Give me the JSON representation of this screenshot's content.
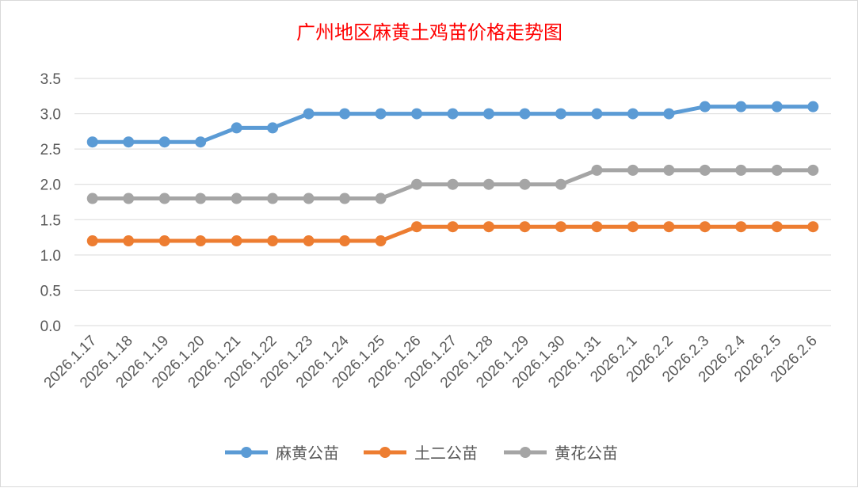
{
  "chart_data": {
    "type": "line",
    "title": "广州地区麻黄土鸡苗价格走势图",
    "xlabel": "",
    "ylabel": "",
    "ylim": [
      0,
      3.5
    ],
    "yticks": [
      "0.0",
      "0.5",
      "1.0",
      "1.5",
      "2.0",
      "2.5",
      "3.0",
      "3.5"
    ],
    "grid": true,
    "legend_position": "bottom",
    "categories": [
      "2026.1.17",
      "2026.1.18",
      "2026.1.19",
      "2026.1.20",
      "2026.1.21",
      "2026.1.22",
      "2026.1.23",
      "2026.1.24",
      "2026.1.25",
      "2026.1.26",
      "2026.1.27",
      "2026.1.28",
      "2026.1.29",
      "2026.1.30",
      "2026.1.31",
      "2026.2.1",
      "2026.2.2",
      "2026.2.3",
      "2026.2.4",
      "2026.2.5",
      "2026.2.6"
    ],
    "series": [
      {
        "name": "麻黄公苗",
        "color": "#5b9bd5",
        "values": [
          2.6,
          2.6,
          2.6,
          2.6,
          2.8,
          2.8,
          3.0,
          3.0,
          3.0,
          3.0,
          3.0,
          3.0,
          3.0,
          3.0,
          3.0,
          3.0,
          3.0,
          3.1,
          3.1,
          3.1,
          3.1
        ]
      },
      {
        "name": "土二公苗",
        "color": "#ed7d31",
        "values": [
          1.2,
          1.2,
          1.2,
          1.2,
          1.2,
          1.2,
          1.2,
          1.2,
          1.2,
          1.4,
          1.4,
          1.4,
          1.4,
          1.4,
          1.4,
          1.4,
          1.4,
          1.4,
          1.4,
          1.4,
          1.4
        ]
      },
      {
        "name": "黄花公苗",
        "color": "#a5a5a5",
        "values": [
          1.8,
          1.8,
          1.8,
          1.8,
          1.8,
          1.8,
          1.8,
          1.8,
          1.8,
          2.0,
          2.0,
          2.0,
          2.0,
          2.0,
          2.2,
          2.2,
          2.2,
          2.2,
          2.2,
          2.2,
          2.2
        ]
      }
    ]
  }
}
